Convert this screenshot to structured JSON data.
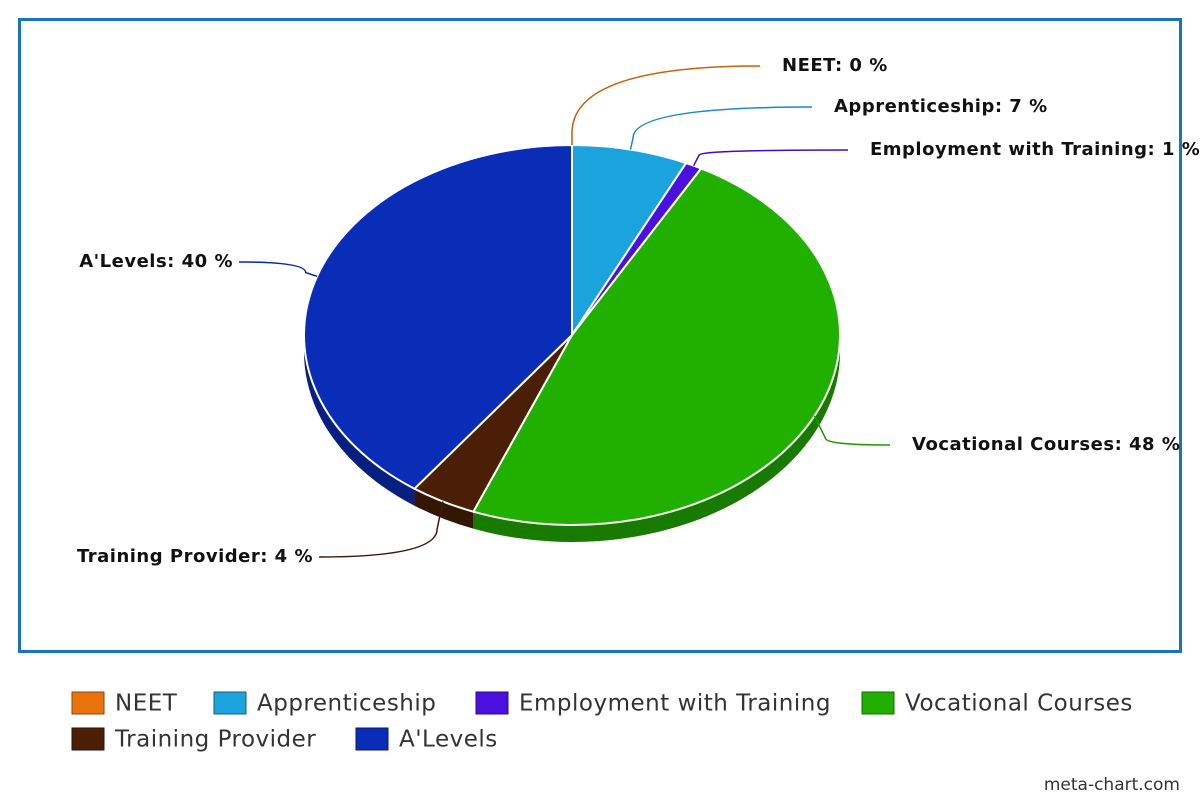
{
  "chart_data": {
    "type": "pie",
    "categories": [
      "NEET",
      "Apprenticeship",
      "Employment with Training",
      "Vocational Courses",
      "Training Provider",
      "A'Levels"
    ],
    "values": [
      0,
      7,
      1,
      48,
      4,
      40
    ],
    "value_labels": [
      "NEET: 0 %",
      "Apprenticeship: 7 %",
      "Employment with Training: 1 %",
      "Vocational Courses: 48 %",
      "Training Provider: 4 %",
      "A'Levels: 40 %"
    ],
    "colors": [
      "#e8730c",
      "#1aa3dc",
      "#4a10e0",
      "#22b000",
      "#4a1f05",
      "#0a2db8"
    ],
    "credit": "meta-chart.com"
  }
}
